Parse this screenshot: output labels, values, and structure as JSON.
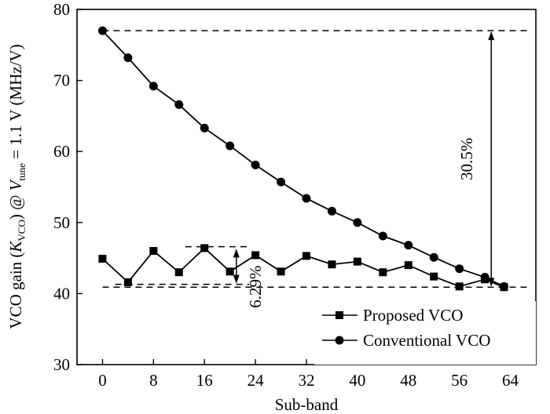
{
  "chart_data": {
    "type": "line",
    "xlabel": "Sub-band",
    "ylabel": {
      "prefix": "VCO gain (",
      "k": "K",
      "k_sub": "VCO",
      "mid": ") @ ",
      "v": "V",
      "v_sub": "tune",
      "suffix": " = 1.1 V (MHz/V)"
    },
    "xlim": [
      -4,
      68
    ],
    "ylim": [
      30,
      80
    ],
    "xticks": [
      0,
      8,
      16,
      24,
      32,
      40,
      48,
      56,
      64
    ],
    "yticks": [
      30,
      40,
      50,
      60,
      70,
      80
    ],
    "grid": false,
    "legend_position": "bottom-right",
    "series": [
      {
        "name": "Proposed VCO",
        "marker": "square",
        "x": [
          0,
          4,
          8,
          12,
          16,
          20,
          24,
          28,
          32,
          36,
          40,
          44,
          48,
          52,
          56,
          60,
          63
        ],
        "y": [
          44.9,
          41.6,
          46.0,
          43.0,
          46.4,
          43.1,
          45.4,
          43.1,
          45.3,
          44.1,
          44.5,
          43.0,
          44.0,
          42.4,
          41.0,
          42.0,
          40.9
        ]
      },
      {
        "name": "Conventional VCO",
        "marker": "circle",
        "x": [
          0,
          4,
          8,
          12,
          16,
          20,
          24,
          28,
          32,
          36,
          40,
          44,
          48,
          52,
          56,
          60,
          63
        ],
        "y": [
          77.0,
          73.2,
          69.2,
          66.6,
          63.3,
          60.8,
          58.1,
          55.7,
          53.4,
          51.6,
          50.0,
          48.1,
          46.8,
          45.1,
          43.5,
          42.3,
          41.0
        ]
      }
    ],
    "annotations": [
      {
        "label": "30.5%",
        "x": 61,
        "y_top": 77.0,
        "y_bottom": 40.9,
        "ref_lines": [
          {
            "y": 77.0,
            "x_from": 0,
            "x_to": 67
          },
          {
            "y": 40.9,
            "x_from": 0,
            "x_to": 67
          }
        ]
      },
      {
        "label": "6.29%",
        "x": 21,
        "y_top": 46.4,
        "y_bottom": 41.3,
        "ref_lines": [
          {
            "y": 46.6,
            "x_from": 13,
            "x_to": 23
          },
          {
            "y": 41.3,
            "x_from": 2,
            "x_to": 23
          }
        ]
      }
    ]
  }
}
